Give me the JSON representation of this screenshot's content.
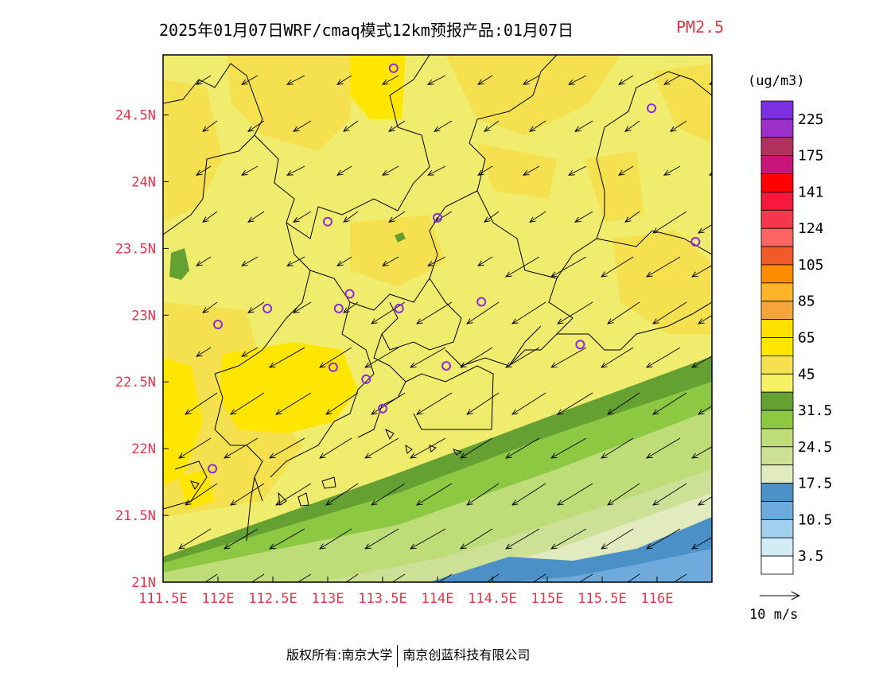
{
  "title": {
    "main": "2025年01月07日WRF/cmaq模式12km预报产品:01月07日",
    "species": "PM2.5"
  },
  "axes": {
    "x_ticks": [
      "111.5E",
      "112E",
      "112.5E",
      "113E",
      "113.5E",
      "114E",
      "114.5E",
      "115E",
      "115.5E",
      "116E"
    ],
    "y_ticks": [
      "21N",
      "21.5N",
      "22N",
      "22.5N",
      "23N",
      "23.5N",
      "24N",
      "24.5N"
    ],
    "lon_range": [
      111.5,
      116.5
    ],
    "lat_range": [
      21.0,
      24.95
    ]
  },
  "legend": {
    "units": "(ug/m3)",
    "labels": [
      "225",
      "175",
      "141",
      "124",
      "105",
      "85",
      "65",
      "45",
      "31.5",
      "24.5",
      "17.5",
      "10.5",
      "3.5"
    ],
    "colors": [
      "#7b2fe0",
      "#9b2fc8",
      "#b0305e",
      "#c8157a",
      "#ff0000",
      "#f5173c",
      "#f5374e",
      "#ff6464",
      "#f05a28",
      "#ff8c00",
      "#ffb428",
      "#f5a53c",
      "#ffe100",
      "#ffe600",
      "#f5e150",
      "#f5f064",
      "#64a032",
      "#8cc841",
      "#bedc78",
      "#cde196",
      "#e1ebbe",
      "#4b91c8",
      "#6eaadc",
      "#a0d2f0",
      "#d2ebf5",
      "#ffffff"
    ]
  },
  "wind_scale": {
    "label": "10 m/s"
  },
  "stations": [
    {
      "lon": 113.6,
      "lat": 24.85
    },
    {
      "lon": 115.95,
      "lat": 24.55
    },
    {
      "lon": 114.0,
      "lat": 23.73
    },
    {
      "lon": 113.0,
      "lat": 23.7
    },
    {
      "lon": 116.35,
      "lat": 23.55
    },
    {
      "lon": 112.45,
      "lat": 23.05
    },
    {
      "lon": 113.1,
      "lat": 23.05
    },
    {
      "lon": 113.2,
      "lat": 23.16
    },
    {
      "lon": 113.65,
      "lat": 23.05
    },
    {
      "lon": 114.4,
      "lat": 23.1
    },
    {
      "lon": 112.0,
      "lat": 22.93
    },
    {
      "lon": 115.3,
      "lat": 22.78
    },
    {
      "lon": 114.08,
      "lat": 22.62
    },
    {
      "lon": 113.05,
      "lat": 22.61
    },
    {
      "lon": 113.35,
      "lat": 22.52
    },
    {
      "lon": 113.5,
      "lat": 22.3
    },
    {
      "lon": 111.95,
      "lat": 21.85
    }
  ],
  "footer": {
    "copyright": "版权所有:南京大学",
    "company": "南京创蓝科技有限公司"
  }
}
